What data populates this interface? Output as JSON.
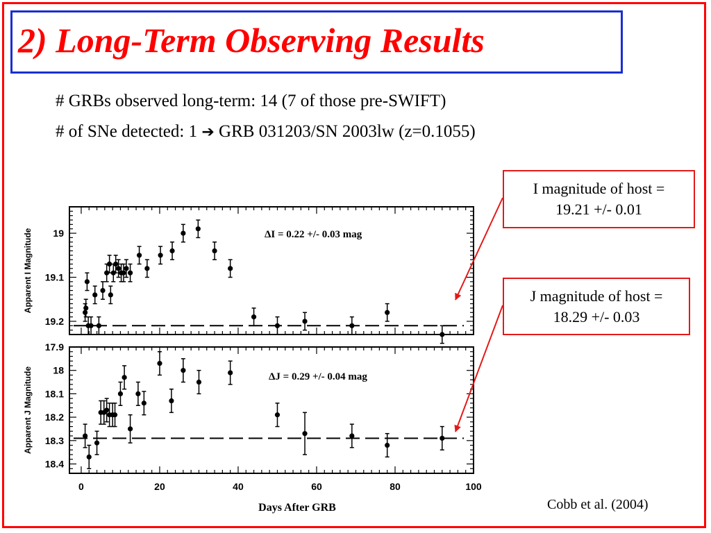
{
  "slide": {
    "title": "2) Long-Term Observing Results",
    "bullet1": "# GRBs observed long-term:  14  (7 of those pre-SWIFT)",
    "bullet2_pre": "# of SNe detected: 1 ",
    "bullet2_arrow": "➔",
    "bullet2_post": " GRB 031203/SN 2003lw (z=0.1055)",
    "callout_i": [
      "I magnitude of host =",
      "19.21 +/- 0.01"
    ],
    "callout_j": [
      "J magnitude of host =",
      "18.29 +/- 0.03"
    ],
    "citation": "Cobb et al. (2004)",
    "colors": {
      "frame": "#ff0000",
      "title_box": "#1a2fd1",
      "title_text": "#ff0000",
      "callout_border": "#e31919"
    }
  },
  "chart_data": [
    {
      "type": "scatter",
      "ylabel": "Apparent I Magnitude",
      "xlabel": "Days After GRB",
      "xlim": [
        -3,
        100
      ],
      "ylim": [
        19.23,
        18.94
      ],
      "y_inverted": true,
      "xticks": [
        "0",
        "20",
        "40",
        "60",
        "80",
        "100"
      ],
      "yticks": [
        "19",
        "19.1",
        "19.2"
      ],
      "annotation": "ΔI = 0.22 +/- 0.03 mag",
      "host_level": 19.21,
      "points": [
        {
          "x": 1.0,
          "y": 19.18,
          "err": 0.02
        },
        {
          "x": 1.2,
          "y": 19.17,
          "err": 0.02
        },
        {
          "x": 1.5,
          "y": 19.11,
          "err": 0.02
        },
        {
          "x": 1.8,
          "y": 19.21,
          "err": 0.02
        },
        {
          "x": 2.5,
          "y": 19.21,
          "err": 0.02
        },
        {
          "x": 3.5,
          "y": 19.14,
          "err": 0.02
        },
        {
          "x": 4.5,
          "y": 19.21,
          "err": 0.02
        },
        {
          "x": 5.5,
          "y": 19.13,
          "err": 0.02
        },
        {
          "x": 6.5,
          "y": 19.09,
          "err": 0.02
        },
        {
          "x": 7.2,
          "y": 19.07,
          "err": 0.02
        },
        {
          "x": 7.5,
          "y": 19.14,
          "err": 0.02
        },
        {
          "x": 8.2,
          "y": 19.09,
          "err": 0.02
        },
        {
          "x": 8.8,
          "y": 19.07,
          "err": 0.02
        },
        {
          "x": 9.5,
          "y": 19.08,
          "err": 0.02
        },
        {
          "x": 10.2,
          "y": 19.09,
          "err": 0.02
        },
        {
          "x": 10.8,
          "y": 19.09,
          "err": 0.02
        },
        {
          "x": 11.5,
          "y": 19.08,
          "err": 0.02
        },
        {
          "x": 12.5,
          "y": 19.09,
          "err": 0.02
        },
        {
          "x": 14.8,
          "y": 19.05,
          "err": 0.02
        },
        {
          "x": 16.8,
          "y": 19.08,
          "err": 0.02
        },
        {
          "x": 20.2,
          "y": 19.05,
          "err": 0.02
        },
        {
          "x": 23.2,
          "y": 19.04,
          "err": 0.02
        },
        {
          "x": 26.0,
          "y": 19.0,
          "err": 0.02
        },
        {
          "x": 29.8,
          "y": 18.99,
          "err": 0.02
        },
        {
          "x": 34.0,
          "y": 19.04,
          "err": 0.02
        },
        {
          "x": 38.0,
          "y": 19.08,
          "err": 0.02
        },
        {
          "x": 44.0,
          "y": 19.19,
          "err": 0.02
        },
        {
          "x": 50.0,
          "y": 19.21,
          "err": 0.02
        },
        {
          "x": 57.0,
          "y": 19.2,
          "err": 0.02
        },
        {
          "x": 69.0,
          "y": 19.21,
          "err": 0.02
        },
        {
          "x": 78.0,
          "y": 19.18,
          "err": 0.02
        },
        {
          "x": 92.0,
          "y": 19.23,
          "err": 0.02
        }
      ]
    },
    {
      "type": "scatter",
      "ylabel": "Apparent J Magnitude",
      "xlabel": "Days After GRB",
      "xlim": [
        -3,
        100
      ],
      "ylim": [
        18.44,
        17.9
      ],
      "y_inverted": true,
      "xticks": [
        "0",
        "20",
        "40",
        "60",
        "80",
        "100"
      ],
      "yticks": [
        "17.9",
        "18",
        "18.1",
        "18.2",
        "18.3",
        "18.4"
      ],
      "annotation": "ΔJ = 0.29 +/- 0.04 mag",
      "host_level": 18.29,
      "points": [
        {
          "x": 1.0,
          "y": 18.28,
          "err": 0.05
        },
        {
          "x": 2.0,
          "y": 18.37,
          "err": 0.05
        },
        {
          "x": 4.0,
          "y": 18.31,
          "err": 0.05
        },
        {
          "x": 5.0,
          "y": 18.18,
          "err": 0.05
        },
        {
          "x": 5.8,
          "y": 18.18,
          "err": 0.05
        },
        {
          "x": 6.5,
          "y": 18.17,
          "err": 0.05
        },
        {
          "x": 7.2,
          "y": 18.19,
          "err": 0.05
        },
        {
          "x": 8.0,
          "y": 18.19,
          "err": 0.05
        },
        {
          "x": 8.6,
          "y": 18.19,
          "err": 0.05
        },
        {
          "x": 10.0,
          "y": 18.1,
          "err": 0.05
        },
        {
          "x": 11.0,
          "y": 18.03,
          "err": 0.05
        },
        {
          "x": 12.5,
          "y": 18.25,
          "err": 0.06
        },
        {
          "x": 14.5,
          "y": 18.1,
          "err": 0.05
        },
        {
          "x": 16.0,
          "y": 18.14,
          "err": 0.05
        },
        {
          "x": 20.0,
          "y": 17.97,
          "err": 0.05
        },
        {
          "x": 23.0,
          "y": 18.13,
          "err": 0.05
        },
        {
          "x": 26.0,
          "y": 18.0,
          "err": 0.05
        },
        {
          "x": 30.0,
          "y": 18.05,
          "err": 0.05
        },
        {
          "x": 38.0,
          "y": 18.01,
          "err": 0.05
        },
        {
          "x": 50.0,
          "y": 18.19,
          "err": 0.05
        },
        {
          "x": 57.0,
          "y": 18.27,
          "err": 0.09
        },
        {
          "x": 69.0,
          "y": 18.28,
          "err": 0.05
        },
        {
          "x": 78.0,
          "y": 18.32,
          "err": 0.05
        },
        {
          "x": 92.0,
          "y": 18.29,
          "err": 0.05
        }
      ]
    }
  ]
}
